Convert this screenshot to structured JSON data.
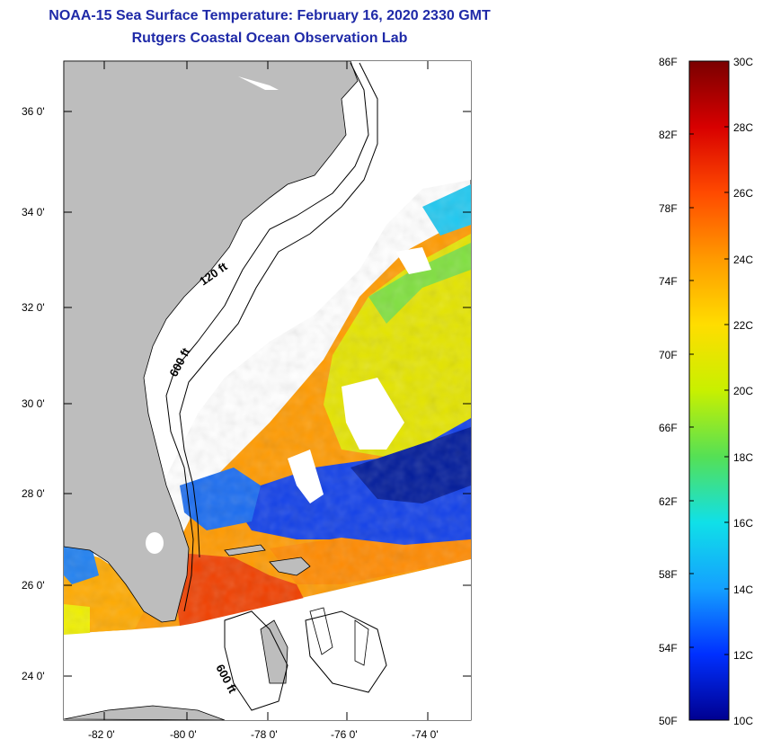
{
  "titles": {
    "line1": "NOAA-15 Sea Surface Temperature:  February 16, 2020 2330 GMT",
    "line2": "Rutgers Coastal Ocean Observation Lab"
  },
  "map": {
    "lat_ticks": [
      "36 0'",
      "34 0'",
      "32 0'",
      "30 0'",
      "28 0'",
      "26 0'",
      "24 0'"
    ],
    "lon_ticks": [
      "-82 0'",
      "-80 0'",
      "-78 0'",
      "-76 0'",
      "-74 0'"
    ],
    "contour_labels": {
      "shelf": "120 ft",
      "slope": "600 ft",
      "bahamas": "600 ft"
    },
    "land_color": "#bdbdbd"
  },
  "colorbar": {
    "fahrenheit_labels": [
      "86F",
      "82F",
      "78F",
      "74F",
      "70F",
      "66F",
      "62F",
      "58F",
      "54F",
      "50F"
    ],
    "celsius_labels": [
      "30C",
      "28C",
      "26C",
      "24C",
      "22C",
      "20C",
      "18C",
      "16C",
      "14C",
      "12C",
      "10C"
    ],
    "colors": [
      "#7a0000",
      "#d80000",
      "#ff4a00",
      "#ff9a00",
      "#ffdd00",
      "#c8f000",
      "#55e055",
      "#10e0e8",
      "#14a0ff",
      "#0030ff",
      "#000090"
    ]
  }
}
